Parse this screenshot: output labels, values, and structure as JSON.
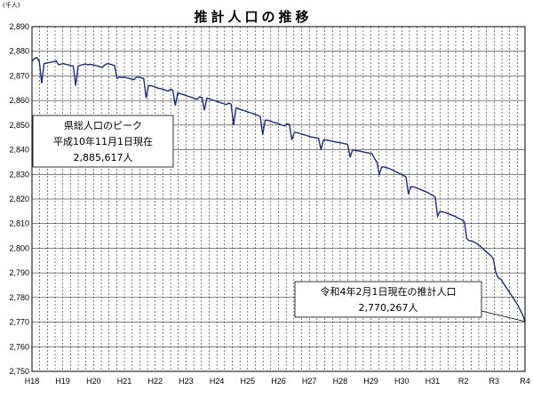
{
  "chart_data": {
    "type": "line",
    "title": "推計人口の推移",
    "ylabel": "(千人)",
    "xlabel": "",
    "ylim": [
      2750,
      2890
    ],
    "ytick_step": 10,
    "grid": true,
    "year_labels": [
      "H18",
      "H19",
      "H20",
      "H21",
      "H22",
      "H23",
      "H24",
      "H25",
      "H26",
      "H27",
      "H28",
      "H29",
      "H30",
      "H31",
      "R2",
      "R3",
      "R4"
    ],
    "line_color": "#1f2a7a",
    "series": [
      {
        "start_label": "H18",
        "end_label": "R4",
        "values": [
          2876,
          2877,
          2877.4,
          2876,
          2867,
          2875,
          2875.2,
          2875.4,
          2875.6,
          2875.8,
          2876,
          2874.5,
          2874.8,
          2875,
          2874.7,
          2874.5,
          2874.2,
          2874,
          2866,
          2874,
          2874.3,
          2874.6,
          2874.8,
          2874.5,
          2874.7,
          2874.5,
          2874.3,
          2874,
          2873.7,
          2873.4,
          2874.5,
          2875,
          2874.8,
          2874.5,
          2874.2,
          2869,
          2869.5,
          2869.3,
          2869.5,
          2869.2,
          2869,
          2868.7,
          2868.5,
          2869.5,
          2869.4,
          2869.2,
          2869,
          2861,
          2866,
          2866,
          2865.7,
          2865.4,
          2865,
          2864.8,
          2864.5,
          2864.2,
          2863.8,
          2864.5,
          2864.2,
          2858,
          2863,
          2862.8,
          2862.5,
          2862.2,
          2861.8,
          2861.5,
          2861.2,
          2860.8,
          2860.5,
          2861.5,
          2861.2,
          2856,
          2861,
          2860.7,
          2860.3,
          2860,
          2859.7,
          2859.3,
          2859,
          2858.7,
          2858.3,
          2859,
          2858.5,
          2850,
          2857,
          2856.7,
          2856.3,
          2856,
          2855.7,
          2855.3,
          2855,
          2854.7,
          2854.3,
          2854,
          2853.5,
          2846,
          2852,
          2852,
          2851.7,
          2851.4,
          2851,
          2850.7,
          2850.4,
          2850,
          2849.7,
          2850.5,
          2850.3,
          2844,
          2847,
          2847,
          2846.7,
          2846.4,
          2846.1,
          2845.8,
          2845.5,
          2845.2,
          2845,
          2844.8,
          2844.6,
          2840,
          2844,
          2844,
          2843.8,
          2843.6,
          2843.4,
          2843.2,
          2843,
          2842.8,
          2842.6,
          2842.4,
          2842.2,
          2837,
          2840,
          2839.8,
          2839.6,
          2839.4,
          2839.2,
          2839,
          2838.8,
          2838.6,
          2838.4,
          2836.5,
          2835,
          2830,
          2833,
          2833,
          2832.7,
          2832.4,
          2832,
          2831.5,
          2831,
          2830.5,
          2830,
          2829.5,
          2829,
          2822,
          2825,
          2825,
          2824.6,
          2824.2,
          2823.8,
          2823.4,
          2823,
          2822.6,
          2822,
          2821.5,
          2820.8,
          2813,
          2815,
          2814.8,
          2814.5,
          2814.2,
          2813.8,
          2813.4,
          2813,
          2812.5,
          2812,
          2811.5,
          2810.8,
          2804,
          2803,
          2803,
          2802.5,
          2802,
          2801.2,
          2800.5,
          2799.5,
          2798.6,
          2797.7,
          2797,
          2795.5,
          2790,
          2788,
          2787.4,
          2786,
          2784.5,
          2783,
          2781.5,
          2780,
          2778.5,
          2777,
          2775,
          2773,
          2770.267
        ]
      }
    ],
    "annotations": [
      {
        "lines": [
          "県総人口のピーク",
          "平成10年11月1日現在",
          "2,885,617人"
        ]
      },
      {
        "lines": [
          "令和4年2月1日現在の推計人口",
          "2,770,267人"
        ]
      }
    ]
  }
}
